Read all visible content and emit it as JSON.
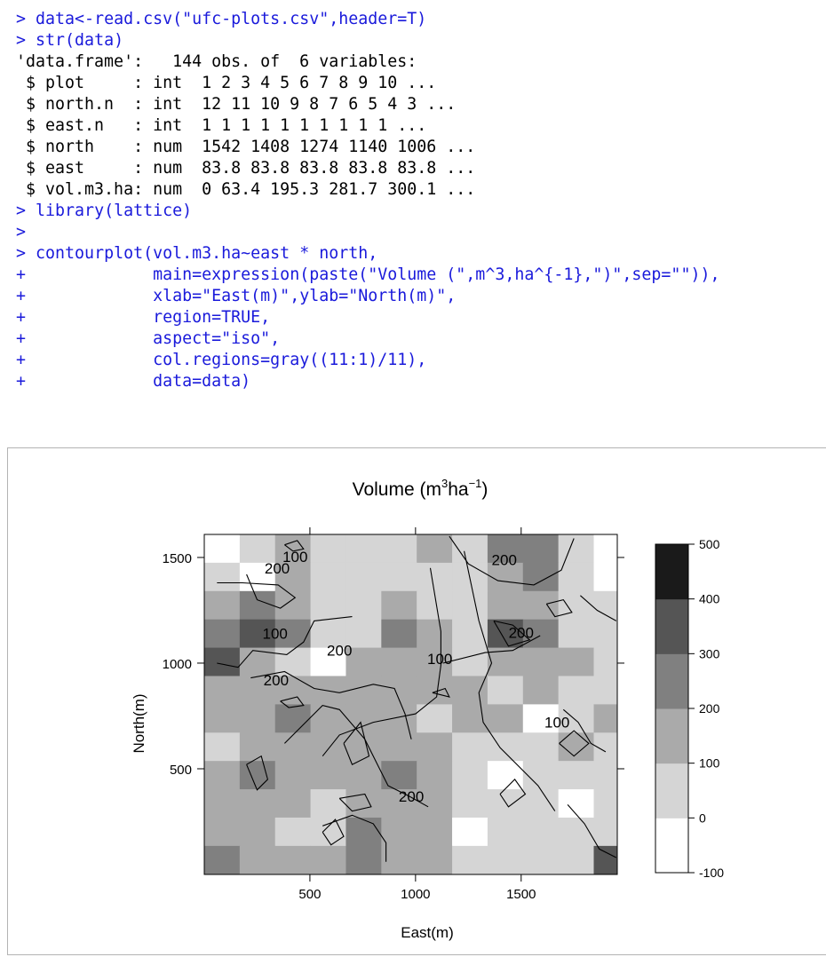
{
  "console": {
    "prompt_symbol": ">",
    "continuation_symbol": "+",
    "lines": [
      {
        "prompt": ">",
        "text": "data<-read.csv(\"ufc-plots.csv\",header=T)",
        "kind": "input"
      },
      {
        "prompt": ">",
        "text": "str(data)",
        "kind": "input"
      },
      {
        "prompt": "",
        "text": "'data.frame':   144 obs. of  6 variables:",
        "kind": "output"
      },
      {
        "prompt": "",
        "text": " $ plot     : int  1 2 3 4 5 6 7 8 9 10 ...",
        "kind": "output"
      },
      {
        "prompt": "",
        "text": " $ north.n  : int  12 11 10 9 8 7 6 5 4 3 ...",
        "kind": "output"
      },
      {
        "prompt": "",
        "text": " $ east.n   : int  1 1 1 1 1 1 1 1 1 1 ...",
        "kind": "output"
      },
      {
        "prompt": "",
        "text": " $ north    : num  1542 1408 1274 1140 1006 ...",
        "kind": "output"
      },
      {
        "prompt": "",
        "text": " $ east     : num  83.8 83.8 83.8 83.8 83.8 ...",
        "kind": "output"
      },
      {
        "prompt": "",
        "text": " $ vol.m3.ha: num  0 63.4 195.3 281.7 300.1 ...",
        "kind": "output"
      },
      {
        "prompt": ">",
        "text": "library(lattice)",
        "kind": "input"
      },
      {
        "prompt": ">",
        "text": "",
        "kind": "input"
      },
      {
        "prompt": ">",
        "text": "contourplot(vol.m3.ha~east * north,",
        "kind": "input"
      },
      {
        "prompt": "+",
        "text": "            main=expression(paste(\"Volume (\",m^3,ha^{-1},\")\",sep=\"\")),",
        "kind": "input"
      },
      {
        "prompt": "+",
        "text": "            xlab=\"East(m)\",ylab=\"North(m)\",",
        "kind": "input"
      },
      {
        "prompt": "+",
        "text": "            region=TRUE,",
        "kind": "input"
      },
      {
        "prompt": "+",
        "text": "            aspect=\"iso\",",
        "kind": "input"
      },
      {
        "prompt": "+",
        "text": "            col.regions=gray((11:1)/11),",
        "kind": "input"
      },
      {
        "prompt": "+",
        "text": "            data=data)",
        "kind": "input"
      }
    ]
  },
  "colors": {
    "console_input": "#1a1adb",
    "console_output": "#000000",
    "contour_line": "#000000"
  },
  "chart_data": {
    "type": "heatmap",
    "title": {
      "base": "Volume (m",
      "sup1": "3",
      "mid": "ha",
      "sup2": "−1",
      "end": ")"
    },
    "xlabel": "East(m)",
    "ylabel": "North(m)",
    "xlim": [
      0,
      1955
    ],
    "ylim": [
      0,
      1609
    ],
    "xticks": [
      500,
      1000,
      1500
    ],
    "yticks": [
      500,
      1000,
      1500
    ],
    "x_centers": [
      83.8,
      251.4,
      419.0,
      586.6,
      754.2,
      921.8,
      1089.4,
      1257.0,
      1424.6,
      1592.2,
      1759.8,
      1927.4
    ],
    "y_centers": [
      1542,
      1408,
      1274,
      1140,
      1006,
      872,
      738,
      604,
      470,
      336,
      202,
      68
    ],
    "cell_width": 167.6,
    "cell_height": 134,
    "grid": [
      [
        0,
        1,
        2,
        1,
        1,
        1,
        2,
        1,
        3,
        3,
        1,
        0
      ],
      [
        1,
        0,
        2,
        1,
        1,
        1,
        1,
        1,
        2,
        3,
        1,
        0
      ],
      [
        2,
        3,
        2,
        1,
        1,
        2,
        1,
        1,
        2,
        2,
        1,
        1
      ],
      [
        3,
        4,
        3,
        1,
        1,
        3,
        2,
        1,
        4,
        3,
        1,
        1
      ],
      [
        4,
        2,
        1,
        0,
        2,
        2,
        2,
        1,
        2,
        2,
        2,
        1
      ],
      [
        2,
        2,
        2,
        2,
        2,
        2,
        2,
        2,
        1,
        2,
        1,
        1
      ],
      [
        2,
        2,
        3,
        2,
        2,
        2,
        1,
        2,
        2,
        0,
        1,
        2
      ],
      [
        1,
        2,
        2,
        2,
        2,
        2,
        2,
        1,
        1,
        1,
        2,
        1
      ],
      [
        2,
        3,
        2,
        2,
        2,
        3,
        2,
        1,
        0,
        1,
        1,
        1
      ],
      [
        2,
        2,
        2,
        1,
        2,
        2,
        2,
        1,
        1,
        1,
        0,
        1
      ],
      [
        2,
        2,
        1,
        1,
        3,
        2,
        2,
        0,
        1,
        1,
        1,
        1
      ],
      [
        3,
        2,
        2,
        2,
        3,
        2,
        2,
        1,
        1,
        1,
        1,
        4
      ]
    ],
    "level_colors": [
      "#ffffff",
      "#d5d5d5",
      "#aaaaaa",
      "#808080",
      "#555555",
      "#1a1a1a"
    ],
    "colorkey": {
      "levels": [
        "-100",
        "0",
        "100",
        "200",
        "300",
        "400",
        "500"
      ],
      "colors": [
        "#ffffff",
        "#d5d5d5",
        "#aaaaaa",
        "#808080",
        "#555555",
        "#1a1a1a"
      ]
    },
    "contour_labels": [
      {
        "text": "100",
        "x": 430,
        "y": 1504
      },
      {
        "text": "200",
        "x": 345,
        "y": 1450
      },
      {
        "text": "100",
        "x": 335,
        "y": 1140
      },
      {
        "text": "200",
        "x": 640,
        "y": 1060
      },
      {
        "text": "100",
        "x": 1115,
        "y": 1020
      },
      {
        "text": "200",
        "x": 1420,
        "y": 1490
      },
      {
        "text": "200",
        "x": 1500,
        "y": 1145
      },
      {
        "text": "200",
        "x": 340,
        "y": 920
      },
      {
        "text": "100",
        "x": 1670,
        "y": 720
      },
      {
        "text": "200",
        "x": 980,
        "y": 370
      }
    ],
    "contour_lines": [
      [
        [
          1160,
          1600
        ],
        [
          1250,
          1470
        ],
        [
          1390,
          1390
        ],
        [
          1560,
          1370
        ],
        [
          1690,
          1440
        ],
        [
          1750,
          1590
        ]
      ],
      [
        [
          1070,
          1450
        ],
        [
          1120,
          1150
        ],
        [
          1120,
          990
        ],
        [
          1100,
          840
        ],
        [
          1000,
          760
        ],
        [
          800,
          720
        ],
        [
          640,
          660
        ],
        [
          560,
          560
        ]
      ],
      [
        [
          1230,
          1530
        ],
        [
          1300,
          1200
        ],
        [
          1360,
          1000
        ],
        [
          1300,
          860
        ],
        [
          1320,
          720
        ],
        [
          1400,
          600
        ],
        [
          1580,
          420
        ],
        [
          1660,
          300
        ]
      ],
      [
        [
          60,
          1380
        ],
        [
          180,
          1380
        ],
        [
          350,
          1370
        ],
        [
          430,
          1310
        ],
        [
          360,
          1260
        ],
        [
          250,
          1300
        ],
        [
          200,
          1420
        ]
      ],
      [
        [
          60,
          1000
        ],
        [
          160,
          980
        ],
        [
          230,
          1060
        ],
        [
          390,
          1040
        ],
        [
          470,
          1100
        ],
        [
          520,
          1200
        ],
        [
          700,
          1220
        ]
      ],
      [
        [
          220,
          930
        ],
        [
          380,
          960
        ],
        [
          520,
          880
        ],
        [
          640,
          860
        ],
        [
          800,
          900
        ],
        [
          900,
          880
        ],
        [
          950,
          760
        ],
        [
          980,
          640
        ]
      ],
      [
        [
          380,
          620
        ],
        [
          460,
          700
        ],
        [
          560,
          800
        ],
        [
          640,
          780
        ],
        [
          760,
          640
        ],
        [
          820,
          520
        ],
        [
          870,
          420
        ],
        [
          970,
          370
        ],
        [
          1060,
          320
        ]
      ],
      [
        [
          560,
          230
        ],
        [
          700,
          280
        ],
        [
          800,
          240
        ],
        [
          860,
          150
        ],
        [
          860,
          60
        ]
      ],
      [
        [
          1130,
          1000
        ],
        [
          1330,
          1050
        ],
        [
          1460,
          1060
        ],
        [
          1590,
          1130
        ]
      ],
      [
        [
          1700,
          780
        ],
        [
          1770,
          720
        ],
        [
          1830,
          620
        ],
        [
          1900,
          580
        ]
      ],
      [
        [
          1780,
          1320
        ],
        [
          1860,
          1250
        ],
        [
          1950,
          1200
        ]
      ],
      [
        [
          1720,
          330
        ],
        [
          1800,
          240
        ],
        [
          1870,
          120
        ],
        [
          1950,
          80
        ]
      ],
      [
        [
          660,
          620
        ],
        [
          740,
          720
        ],
        [
          780,
          560
        ],
        [
          700,
          520
        ],
        [
          660,
          620
        ]
      ],
      [
        [
          1080,
          860
        ],
        [
          1140,
          880
        ],
        [
          1160,
          840
        ],
        [
          1080,
          860
        ]
      ],
      [
        [
          1680,
          620
        ],
        [
          1750,
          680
        ],
        [
          1820,
          620
        ],
        [
          1750,
          560
        ],
        [
          1680,
          620
        ]
      ],
      [
        [
          200,
          520
        ],
        [
          270,
          560
        ],
        [
          300,
          450
        ],
        [
          250,
          400
        ],
        [
          200,
          520
        ]
      ],
      [
        [
          640,
          360
        ],
        [
          760,
          380
        ],
        [
          790,
          320
        ],
        [
          700,
          300
        ],
        [
          640,
          360
        ]
      ],
      [
        [
          1370,
          1200
        ],
        [
          1460,
          1180
        ],
        [
          1540,
          1110
        ],
        [
          1440,
          1080
        ],
        [
          1370,
          1200
        ]
      ],
      [
        [
          1620,
          1280
        ],
        [
          1700,
          1300
        ],
        [
          1740,
          1240
        ],
        [
          1660,
          1220
        ],
        [
          1620,
          1280
        ]
      ],
      [
        [
          360,
          820
        ],
        [
          440,
          840
        ],
        [
          470,
          800
        ],
        [
          400,
          790
        ],
        [
          360,
          820
        ]
      ],
      [
        [
          1400,
          380
        ],
        [
          1470,
          450
        ],
        [
          1520,
          380
        ],
        [
          1440,
          320
        ],
        [
          1400,
          380
        ]
      ],
      [
        [
          560,
          200
        ],
        [
          620,
          260
        ],
        [
          660,
          180
        ],
        [
          600,
          140
        ],
        [
          560,
          200
        ]
      ],
      [
        [
          380,
          1560
        ],
        [
          440,
          1580
        ],
        [
          470,
          1540
        ],
        [
          420,
          1530
        ],
        [
          380,
          1560
        ]
      ]
    ]
  }
}
